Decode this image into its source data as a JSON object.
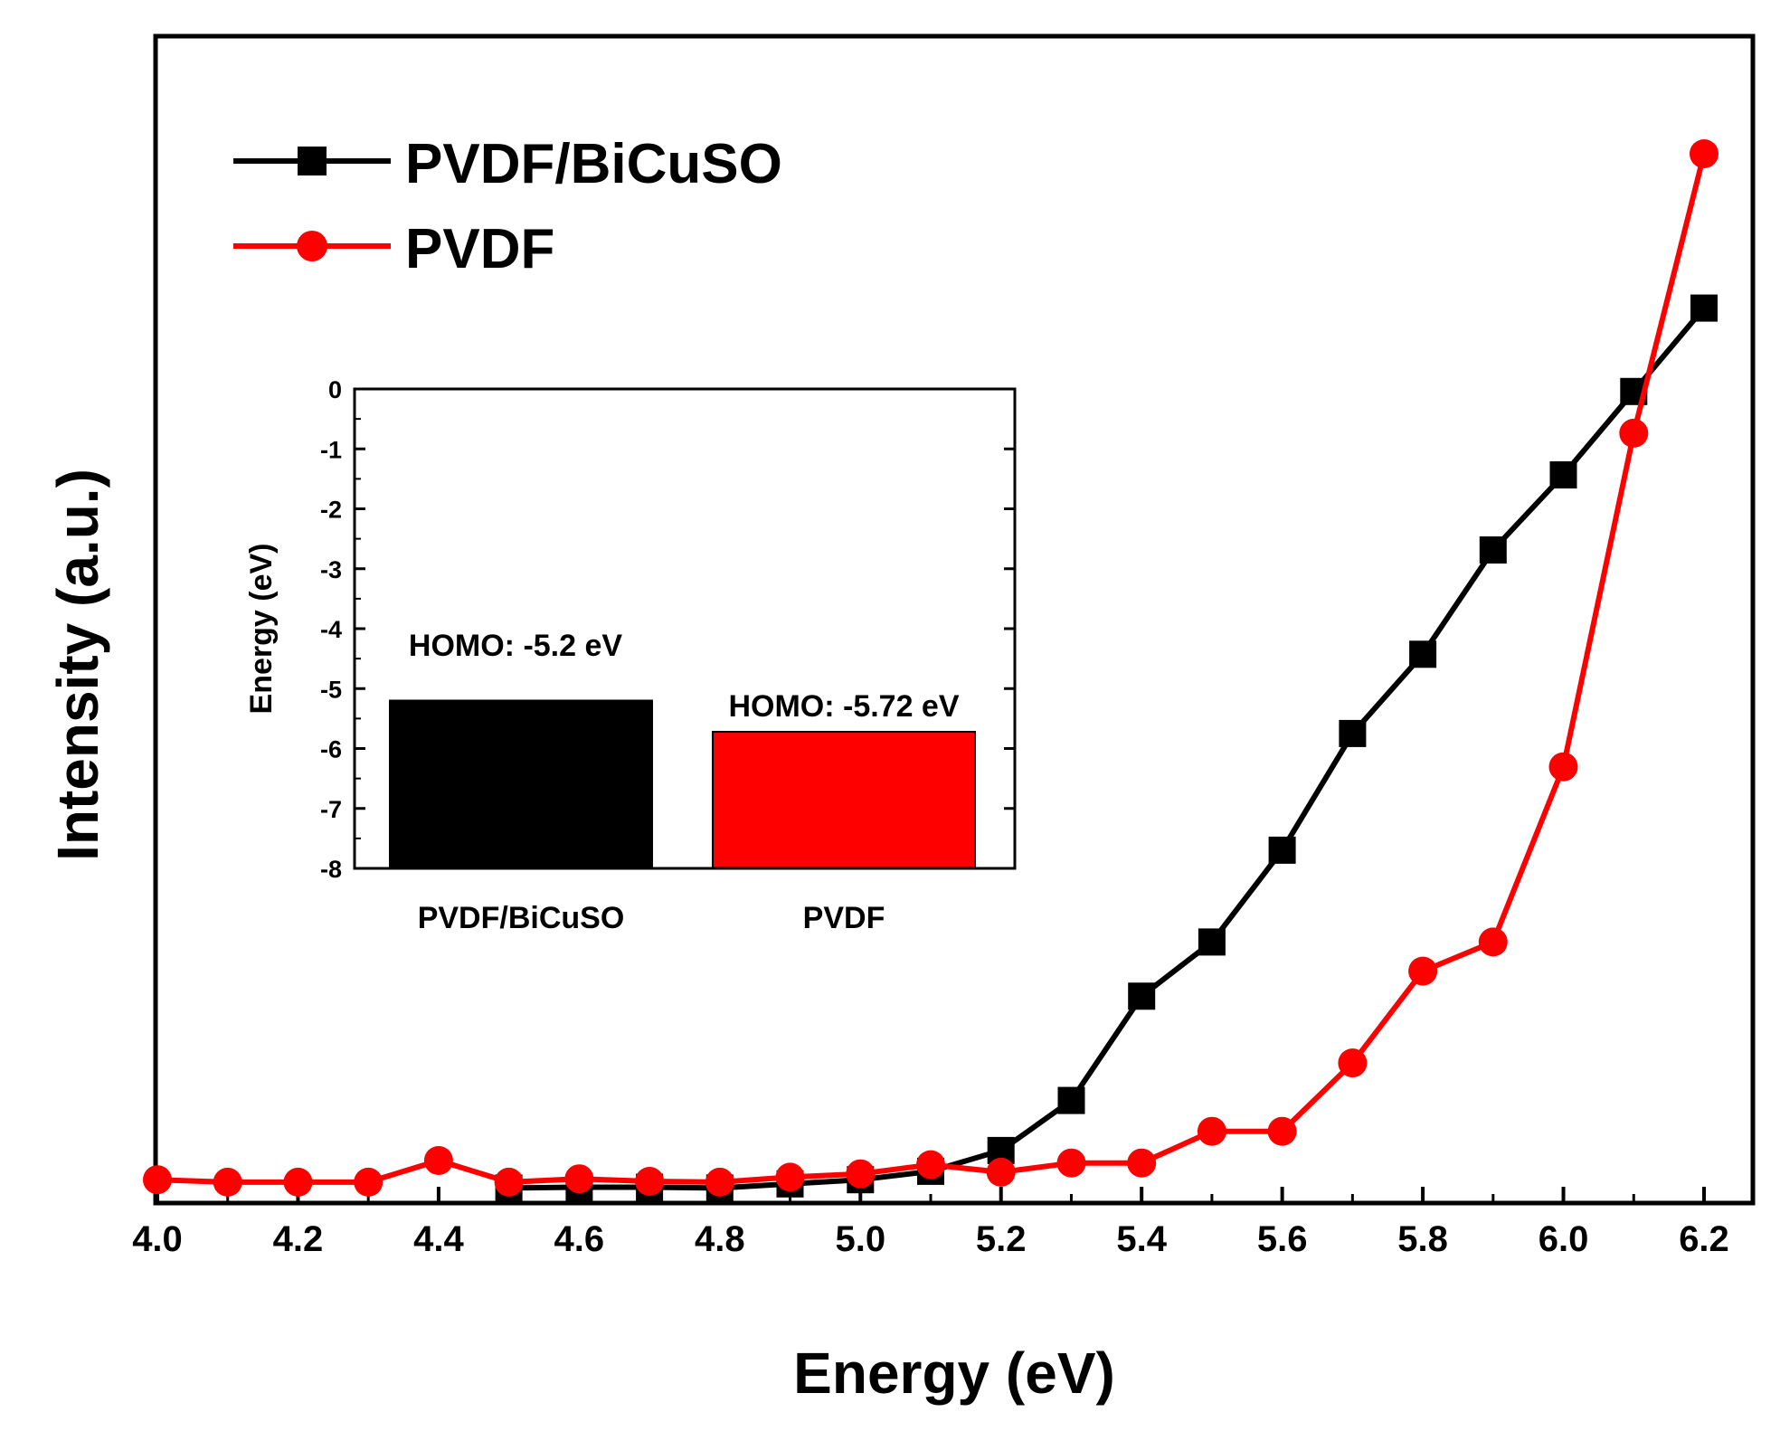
{
  "chart_data": {
    "type": "line",
    "title": "",
    "xlabel": "Energy (eV)",
    "ylabel": "Intensity (a.u.)",
    "xlim": [
      4.0,
      6.25
    ],
    "ylim": [
      0,
      100
    ],
    "x_ticks": [
      "4.0",
      "4.2",
      "4.4",
      "4.6",
      "4.8",
      "5.0",
      "5.2",
      "5.4",
      "5.6",
      "5.8",
      "6.0",
      "6.2"
    ],
    "y_ticks_shown": false,
    "legend_position": "top-left",
    "x": [
      4.0,
      4.1,
      4.2,
      4.3,
      4.4,
      4.5,
      4.6,
      4.7,
      4.8,
      4.9,
      5.0,
      5.1,
      5.2,
      5.3,
      5.4,
      5.5,
      5.6,
      5.7,
      5.8,
      5.9,
      6.0,
      6.1,
      6.2
    ],
    "series": [
      {
        "name": "PVDF/BiCuSO",
        "color": "#000000",
        "marker": "square",
        "values": [
          null,
          null,
          null,
          null,
          null,
          0.5,
          0.6,
          0.6,
          0.5,
          1.0,
          1.5,
          2.5,
          5.0,
          11.0,
          23.5,
          30.0,
          41.0,
          55.0,
          64.5,
          77.0,
          86.0,
          96.0,
          106.0
        ]
      },
      {
        "name": "PVDF",
        "color": "#ff0000",
        "marker": "circle",
        "values": [
          1.5,
          1.2,
          1.2,
          1.2,
          3.8,
          1.2,
          1.6,
          1.3,
          1.2,
          1.8,
          2.2,
          3.3,
          2.4,
          3.5,
          3.5,
          7.3,
          7.3,
          15.5,
          26.5,
          30.0,
          51.0,
          91.0,
          124.5
        ]
      }
    ]
  },
  "inset": {
    "type": "bar",
    "ylabel": "Energy (eV)",
    "ylim": [
      -8,
      0
    ],
    "y_ticks": [
      "0",
      "-1",
      "-2",
      "-3",
      "-4",
      "-5",
      "-6",
      "-7",
      "-8"
    ],
    "categories": [
      "PVDF/BiCuSO",
      "PVDF"
    ],
    "values": [
      -5.2,
      -5.72
    ],
    "colors": [
      "#000000",
      "#ff0000"
    ],
    "annotations": [
      "HOMO: -5.2 eV",
      "HOMO: -5.72 eV"
    ]
  }
}
